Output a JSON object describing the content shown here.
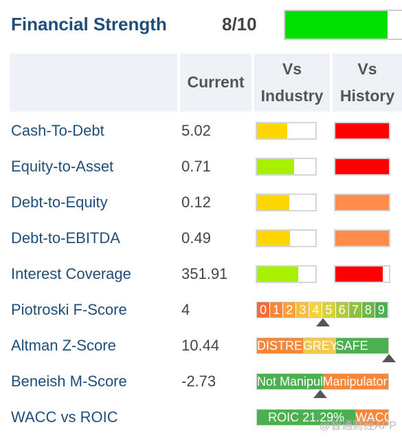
{
  "header": {
    "title": "Financial Strength",
    "score": "8/10",
    "score_fraction": 0.8,
    "score_color": "#00e000"
  },
  "columns": {
    "current": "Current",
    "vs": "Vs",
    "industry": "Industry",
    "history": "History"
  },
  "rows": [
    {
      "name": "Cash-To-Debt",
      "value": "5.02",
      "industry_level": 0.52,
      "industry_color": "#ffd700",
      "history_level": 1.0,
      "history_color": "#ff0000"
    },
    {
      "name": "Equity-to-Asset",
      "value": "0.71",
      "industry_level": 0.63,
      "industry_color": "#a6f000",
      "history_level": 1.0,
      "history_color": "#ff0000"
    },
    {
      "name": "Debt-to-Equity",
      "value": "0.12",
      "industry_level": 0.55,
      "industry_color": "#ffd700",
      "history_level": 1.0,
      "history_color": "#ff8c4a"
    },
    {
      "name": "Debt-to-EBITDA",
      "value": "0.49",
      "industry_level": 0.56,
      "industry_color": "#ffd700",
      "history_level": 1.0,
      "history_color": "#ff8c4a"
    },
    {
      "name": "Interest Coverage",
      "value": "351.91",
      "industry_level": 0.7,
      "industry_color": "#a6f000",
      "history_level": 0.89,
      "history_color": "#ff0000"
    }
  ],
  "piotroski": {
    "name": "Piotroski F-Score",
    "value": "4",
    "digits": [
      "0",
      "1",
      "2",
      "3",
      "4",
      "5",
      "6",
      "7",
      "8",
      "9"
    ],
    "digit_colors": [
      "#f26b3a",
      "#f5863a",
      "#f7a23a",
      "#f8bd3a",
      "#f5d33a",
      "#d6d23a",
      "#b2c93f",
      "#8fc044",
      "#6fb548",
      "#4caf50"
    ],
    "marker_position": 0.5
  },
  "altman": {
    "name": "Altman Z-Score",
    "value": "10.44",
    "zones": [
      {
        "label": "DISTRESS",
        "color": "#f5863a"
      },
      {
        "label": "GREY",
        "color": "#f2c94c"
      },
      {
        "label": "SAFE",
        "color": "#4caf50"
      }
    ],
    "marker_position": 1.0
  },
  "beneish": {
    "name": "Beneish M-Score",
    "value": "-2.73",
    "zones": [
      {
        "label": "Not Manipulator",
        "color": "#4caf50"
      },
      {
        "label": "Manipulator",
        "color": "#f5863a"
      }
    ],
    "marker_position": 0.48
  },
  "wacc": {
    "name": "WACC vs ROIC",
    "value": "",
    "zones": [
      {
        "label": "ROIC 21.29%",
        "color": "#4caf50"
      },
      {
        "label": "WACC",
        "color": "#f5863a"
      }
    ]
  },
  "watermark": "@智通财经APP"
}
